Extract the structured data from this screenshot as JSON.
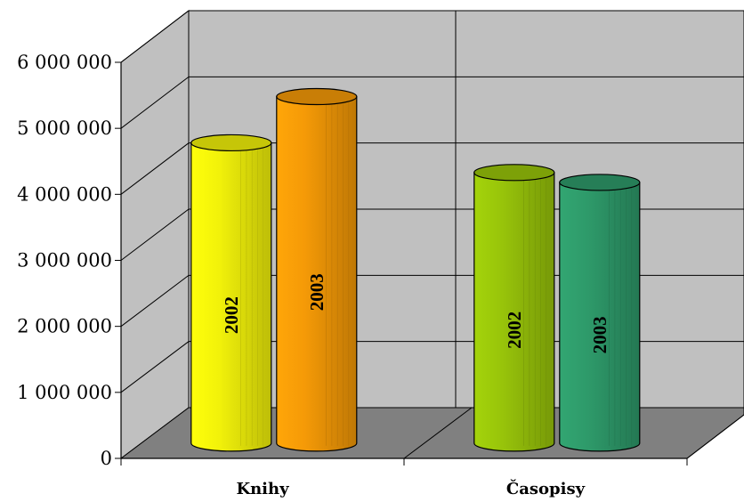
{
  "chart_data": {
    "type": "bar",
    "style": "3d-cylinder",
    "categories": [
      "Knihy",
      "Časopisy"
    ],
    "series": [
      {
        "name": "2002",
        "values": [
          4550000,
          4100000
        ]
      },
      {
        "name": "2003",
        "values": [
          5250000,
          3950000
        ]
      }
    ],
    "bar_labels": [
      [
        "2002",
        "2003"
      ],
      [
        "2002",
        "2003"
      ]
    ],
    "bar_colors": [
      [
        "#f2f20a",
        "#f59a07"
      ],
      [
        "#98c40a",
        "#2e9a6a"
      ]
    ],
    "title": "",
    "xlabel": "",
    "ylabel": "",
    "ylim": [
      0,
      6000000
    ],
    "yticks": [
      0,
      1000000,
      2000000,
      3000000,
      4000000,
      5000000,
      6000000
    ],
    "ytick_labels": [
      "0",
      "1 000 000",
      "2 000 000",
      "3 000 000",
      "4 000 000",
      "5 000 000",
      "6 000 000"
    ],
    "grid": true,
    "legend": "none",
    "wall_color": "#c0c0c0",
    "floor_color": "#808080"
  }
}
